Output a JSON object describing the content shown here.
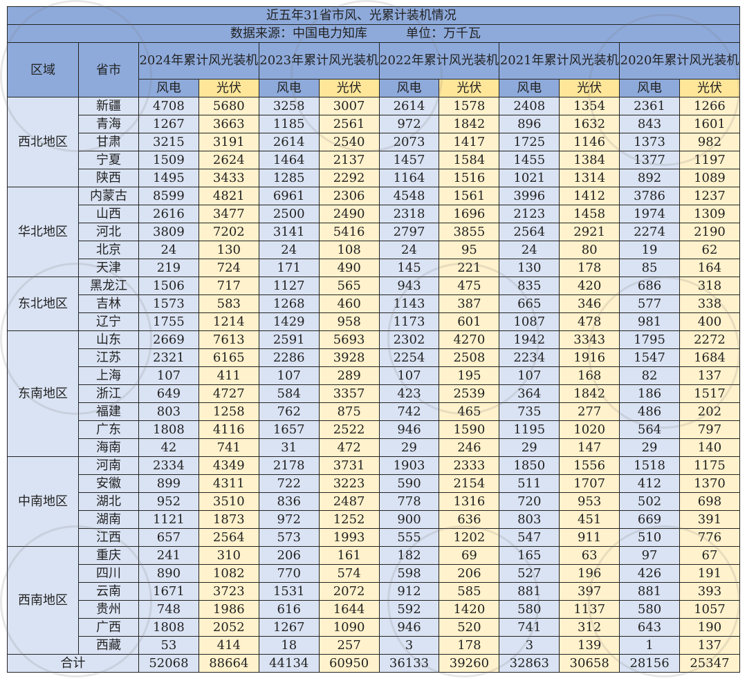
{
  "title": "近五年31省市风、光累计装机情况",
  "source": "数据来源：中国电力知库",
  "unit": "单位：万千瓦",
  "headers": {
    "region": "区域",
    "province": "省市",
    "years": [
      "2024年累计风光装机",
      "2023年累计风光装机",
      "2022年累计风光装机",
      "2021年累计风光装机",
      "2020年累计风光装机"
    ],
    "wind": "风电",
    "solar": "光伏"
  },
  "colors": {
    "header_blue": "#8eaadb",
    "header_yellow": "#ffe699",
    "cell_blue": "#dae3f3",
    "cell_yellow": "#fff2cc"
  },
  "watermark": "风芒能源",
  "regions": [
    {
      "name": "西北地区",
      "rows": [
        {
          "province": "新疆",
          "values": [
            4708,
            5680,
            3258,
            3007,
            2614,
            1578,
            2408,
            1354,
            2361,
            1266
          ]
        },
        {
          "province": "青海",
          "values": [
            1267,
            3663,
            1185,
            2561,
            972,
            1842,
            896,
            1632,
            843,
            1601
          ]
        },
        {
          "province": "甘肃",
          "values": [
            3215,
            3191,
            2614,
            2540,
            2073,
            1417,
            1725,
            1146,
            1373,
            982
          ]
        },
        {
          "province": "宁夏",
          "values": [
            1509,
            2624,
            1464,
            2137,
            1457,
            1584,
            1455,
            1384,
            1377,
            1197
          ]
        },
        {
          "province": "陕西",
          "values": [
            1495,
            3433,
            1285,
            2292,
            1164,
            1516,
            1021,
            1314,
            892,
            1089
          ]
        }
      ]
    },
    {
      "name": "华北地区",
      "rows": [
        {
          "province": "内蒙古",
          "values": [
            8599,
            4821,
            6961,
            2306,
            4548,
            1561,
            3996,
            1412,
            3786,
            1237
          ]
        },
        {
          "province": "山西",
          "values": [
            2616,
            3477,
            2500,
            2490,
            2318,
            1696,
            2123,
            1458,
            1974,
            1309
          ]
        },
        {
          "province": "河北",
          "values": [
            3809,
            7202,
            3141,
            5416,
            2797,
            3855,
            2564,
            2921,
            2274,
            2190
          ]
        },
        {
          "province": "北京",
          "values": [
            24,
            130,
            24,
            108,
            24,
            95,
            24,
            80,
            19,
            62
          ]
        },
        {
          "province": "天津",
          "values": [
            219,
            724,
            171,
            490,
            145,
            221,
            130,
            178,
            85,
            164
          ]
        }
      ]
    },
    {
      "name": "东北地区",
      "rows": [
        {
          "province": "黑龙江",
          "values": [
            1506,
            717,
            1127,
            565,
            943,
            475,
            835,
            420,
            686,
            318
          ]
        },
        {
          "province": "吉林",
          "values": [
            1573,
            583,
            1268,
            460,
            1143,
            387,
            665,
            346,
            577,
            338
          ]
        },
        {
          "province": "辽宁",
          "values": [
            1755,
            1214,
            1429,
            958,
            1173,
            601,
            1087,
            478,
            981,
            400
          ]
        }
      ]
    },
    {
      "name": "东南地区",
      "rows": [
        {
          "province": "山东",
          "values": [
            2669,
            7613,
            2591,
            5693,
            2302,
            4270,
            1942,
            3343,
            1795,
            2272
          ]
        },
        {
          "province": "江苏",
          "values": [
            2321,
            6165,
            2286,
            3928,
            2254,
            2508,
            2234,
            1916,
            1547,
            1684
          ]
        },
        {
          "province": "上海",
          "values": [
            107,
            411,
            107,
            289,
            107,
            195,
            107,
            168,
            82,
            137
          ]
        },
        {
          "province": "浙江",
          "values": [
            649,
            4727,
            584,
            3357,
            423,
            2539,
            364,
            1842,
            186,
            1517
          ]
        },
        {
          "province": "福建",
          "values": [
            803,
            1258,
            762,
            875,
            742,
            465,
            735,
            277,
            486,
            202
          ]
        },
        {
          "province": "广东",
          "values": [
            1808,
            4116,
            1657,
            2522,
            946,
            1590,
            1195,
            1020,
            564,
            797
          ]
        },
        {
          "province": "海南",
          "values": [
            42,
            741,
            31,
            472,
            29,
            246,
            29,
            147,
            29,
            140
          ]
        }
      ]
    },
    {
      "name": "中南地区",
      "rows": [
        {
          "province": "河南",
          "values": [
            2334,
            4349,
            2178,
            3731,
            1903,
            2333,
            1850,
            1556,
            1518,
            1175
          ]
        },
        {
          "province": "安徽",
          "values": [
            899,
            4311,
            722,
            3223,
            590,
            2154,
            511,
            1707,
            412,
            1370
          ]
        },
        {
          "province": "湖北",
          "values": [
            952,
            3510,
            836,
            2487,
            778,
            1316,
            720,
            953,
            502,
            698
          ]
        },
        {
          "province": "湖南",
          "values": [
            1121,
            1873,
            972,
            1252,
            900,
            636,
            803,
            451,
            669,
            391
          ]
        },
        {
          "province": "江西",
          "values": [
            657,
            2564,
            573,
            1993,
            555,
            1202,
            547,
            911,
            510,
            776
          ]
        }
      ]
    },
    {
      "name": "西南地区",
      "rows": [
        {
          "province": "重庆",
          "values": [
            241,
            310,
            206,
            161,
            182,
            69,
            165,
            63,
            97,
            67
          ]
        },
        {
          "province": "四川",
          "values": [
            890,
            1082,
            770,
            574,
            598,
            206,
            527,
            196,
            426,
            191
          ]
        },
        {
          "province": "云南",
          "values": [
            1671,
            3723,
            1531,
            2072,
            912,
            585,
            881,
            397,
            881,
            393
          ]
        },
        {
          "province": "贵州",
          "values": [
            748,
            1986,
            616,
            1644,
            592,
            1420,
            580,
            1137,
            580,
            1057
          ]
        },
        {
          "province": "广西",
          "values": [
            1808,
            2052,
            1267,
            1090,
            946,
            520,
            741,
            312,
            643,
            190
          ]
        },
        {
          "province": "西藏",
          "values": [
            53,
            414,
            18,
            257,
            3,
            178,
            3,
            139,
            1,
            137
          ]
        }
      ]
    }
  ],
  "total": {
    "label": "合计",
    "values": [
      52068,
      88664,
      44134,
      60950,
      36133,
      39260,
      32863,
      30658,
      28156,
      25347
    ]
  }
}
